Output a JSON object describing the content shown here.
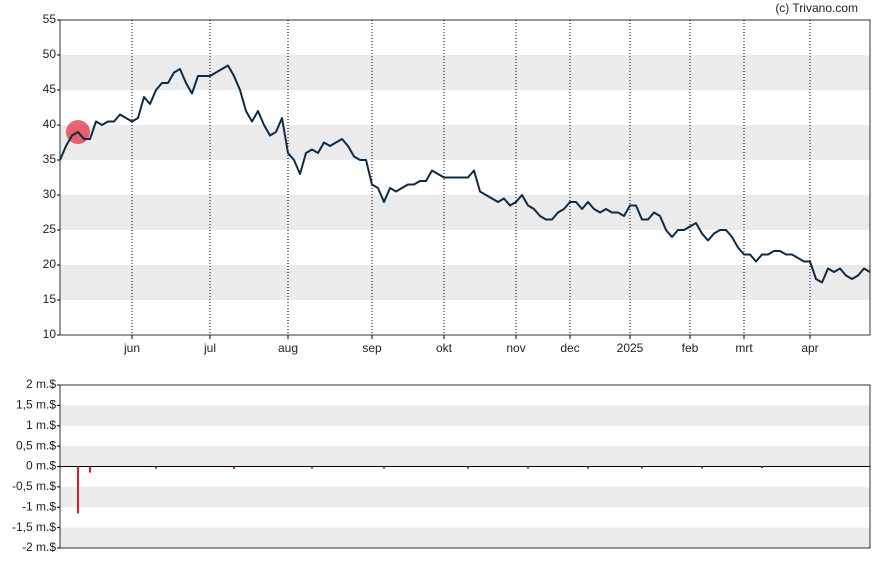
{
  "chart_data": [
    {
      "type": "line",
      "credit": "(c) Trivano.com",
      "color": "#0d2b45",
      "highlight_color": "#e0192a",
      "bands": true,
      "ylim": [
        10,
        55
      ],
      "yticks": [
        10,
        15,
        20,
        25,
        30,
        35,
        40,
        45,
        50,
        55
      ],
      "categories": [
        null,
        null,
        null,
        null,
        null,
        null,
        null,
        null,
        null,
        null,
        null,
        null,
        "jun",
        null,
        null,
        null,
        null,
        null,
        null,
        null,
        null,
        null,
        null,
        null,
        null,
        "jul",
        null,
        null,
        null,
        null,
        null,
        null,
        null,
        null,
        null,
        null,
        null,
        null,
        "aug",
        null,
        null,
        null,
        null,
        null,
        null,
        null,
        null,
        null,
        null,
        null,
        null,
        null,
        "sep",
        null,
        null,
        null,
        null,
        null,
        null,
        null,
        null,
        null,
        null,
        null,
        "okt",
        null,
        null,
        null,
        null,
        null,
        null,
        null,
        null,
        null,
        null,
        null,
        "nov",
        null,
        null,
        null,
        null,
        null,
        null,
        null,
        null,
        "dec",
        null,
        null,
        null,
        null,
        null,
        null,
        null,
        null,
        null,
        "2025",
        null,
        null,
        null,
        null,
        null,
        null,
        null,
        null,
        null,
        "feb",
        null,
        null,
        null,
        null,
        null,
        null,
        null,
        null,
        "mrt",
        null,
        null,
        null,
        null,
        null,
        null,
        null,
        null,
        null,
        null,
        "apr",
        null,
        null,
        null,
        null,
        null,
        null,
        null,
        null,
        null,
        null
      ],
      "values": [
        35,
        37,
        38.5,
        39,
        38,
        38,
        40.5,
        40,
        40.5,
        40.5,
        41.5,
        41,
        40.5,
        41,
        44,
        43,
        45,
        46,
        46,
        47.5,
        48,
        46,
        44.5,
        47,
        47,
        47,
        47.5,
        48,
        48.5,
        47,
        45,
        42,
        40.5,
        42,
        40,
        38.5,
        39,
        41,
        36,
        35,
        33,
        36,
        36.5,
        36,
        37.5,
        37,
        37.5,
        38,
        37,
        35.5,
        35,
        35,
        31.5,
        31,
        29,
        31,
        30.5,
        31,
        31.5,
        31.5,
        32,
        32,
        33.5,
        33,
        32.5,
        32.5,
        32.5,
        32.5,
        32.5,
        33.5,
        30.5,
        30,
        29.5,
        29,
        29.5,
        28.5,
        29,
        30,
        28.5,
        28,
        27,
        26.5,
        26.5,
        27.5,
        28,
        29,
        29,
        28,
        29,
        28,
        27.5,
        28,
        27.5,
        27.5,
        27,
        28.5,
        28.5,
        26.5,
        26.5,
        27.5,
        27,
        25,
        24,
        25,
        25,
        25.5,
        26,
        24.5,
        23.5,
        24.5,
        25,
        25,
        24,
        22.5,
        21.5,
        21.5,
        20.5,
        21.5,
        21.5,
        22,
        22,
        21.5,
        21.5,
        21,
        20.5,
        20.5,
        18,
        17.5,
        19.5,
        19,
        19.5,
        18.5,
        18,
        18.5,
        19.5,
        19
      ]
    },
    {
      "type": "bar",
      "color": "#e0192a",
      "bands": true,
      "ylim": [
        -2000000,
        2000000
      ],
      "yticks": [
        {
          "value": -2000000,
          "label": "-2 m.$"
        },
        {
          "value": -1500000,
          "label": "-1,5 m.$"
        },
        {
          "value": -1000000,
          "label": "-1 m.$"
        },
        {
          "value": -500000,
          "label": "-0,5 m.$"
        },
        {
          "value": 0,
          "label": "0 m.$"
        },
        {
          "value": 500000,
          "label": "0,5 m.$"
        },
        {
          "value": 1000000,
          "label": "1 m.$"
        },
        {
          "value": 1500000,
          "label": "1,5 m.$"
        },
        {
          "value": 2000000,
          "label": "2 m.$"
        }
      ],
      "values": [
        null,
        null,
        null,
        -1150000,
        null,
        -150000,
        null,
        null,
        null,
        null,
        null,
        null,
        null,
        null,
        null,
        null,
        -50000,
        null,
        null,
        null,
        null,
        null,
        null,
        null,
        null,
        null,
        null,
        null,
        null,
        -60000,
        null,
        null,
        null,
        null,
        null,
        null,
        null,
        null,
        null,
        null,
        null,
        null,
        -50000,
        null,
        null,
        null,
        null,
        null,
        null,
        null,
        null,
        null,
        null,
        null,
        -50000,
        null,
        null,
        null,
        null,
        null,
        null,
        null,
        null,
        null,
        null,
        null,
        null,
        null,
        -50000,
        null,
        null,
        null,
        null,
        null,
        null,
        null,
        null,
        null,
        -50000,
        null,
        null,
        null,
        null,
        null,
        null,
        null,
        null,
        null,
        -50000,
        null,
        null,
        null,
        null,
        null,
        null,
        null,
        null,
        -50000,
        null,
        null,
        null,
        null,
        null,
        null,
        null,
        null,
        null,
        -50000,
        null,
        null,
        null,
        null,
        null,
        null,
        null,
        null,
        null,
        -40000,
        null,
        null,
        null,
        null,
        null,
        null,
        null,
        null,
        null,
        null,
        null,
        null,
        null,
        null,
        null,
        null,
        null,
        null
      ]
    }
  ]
}
